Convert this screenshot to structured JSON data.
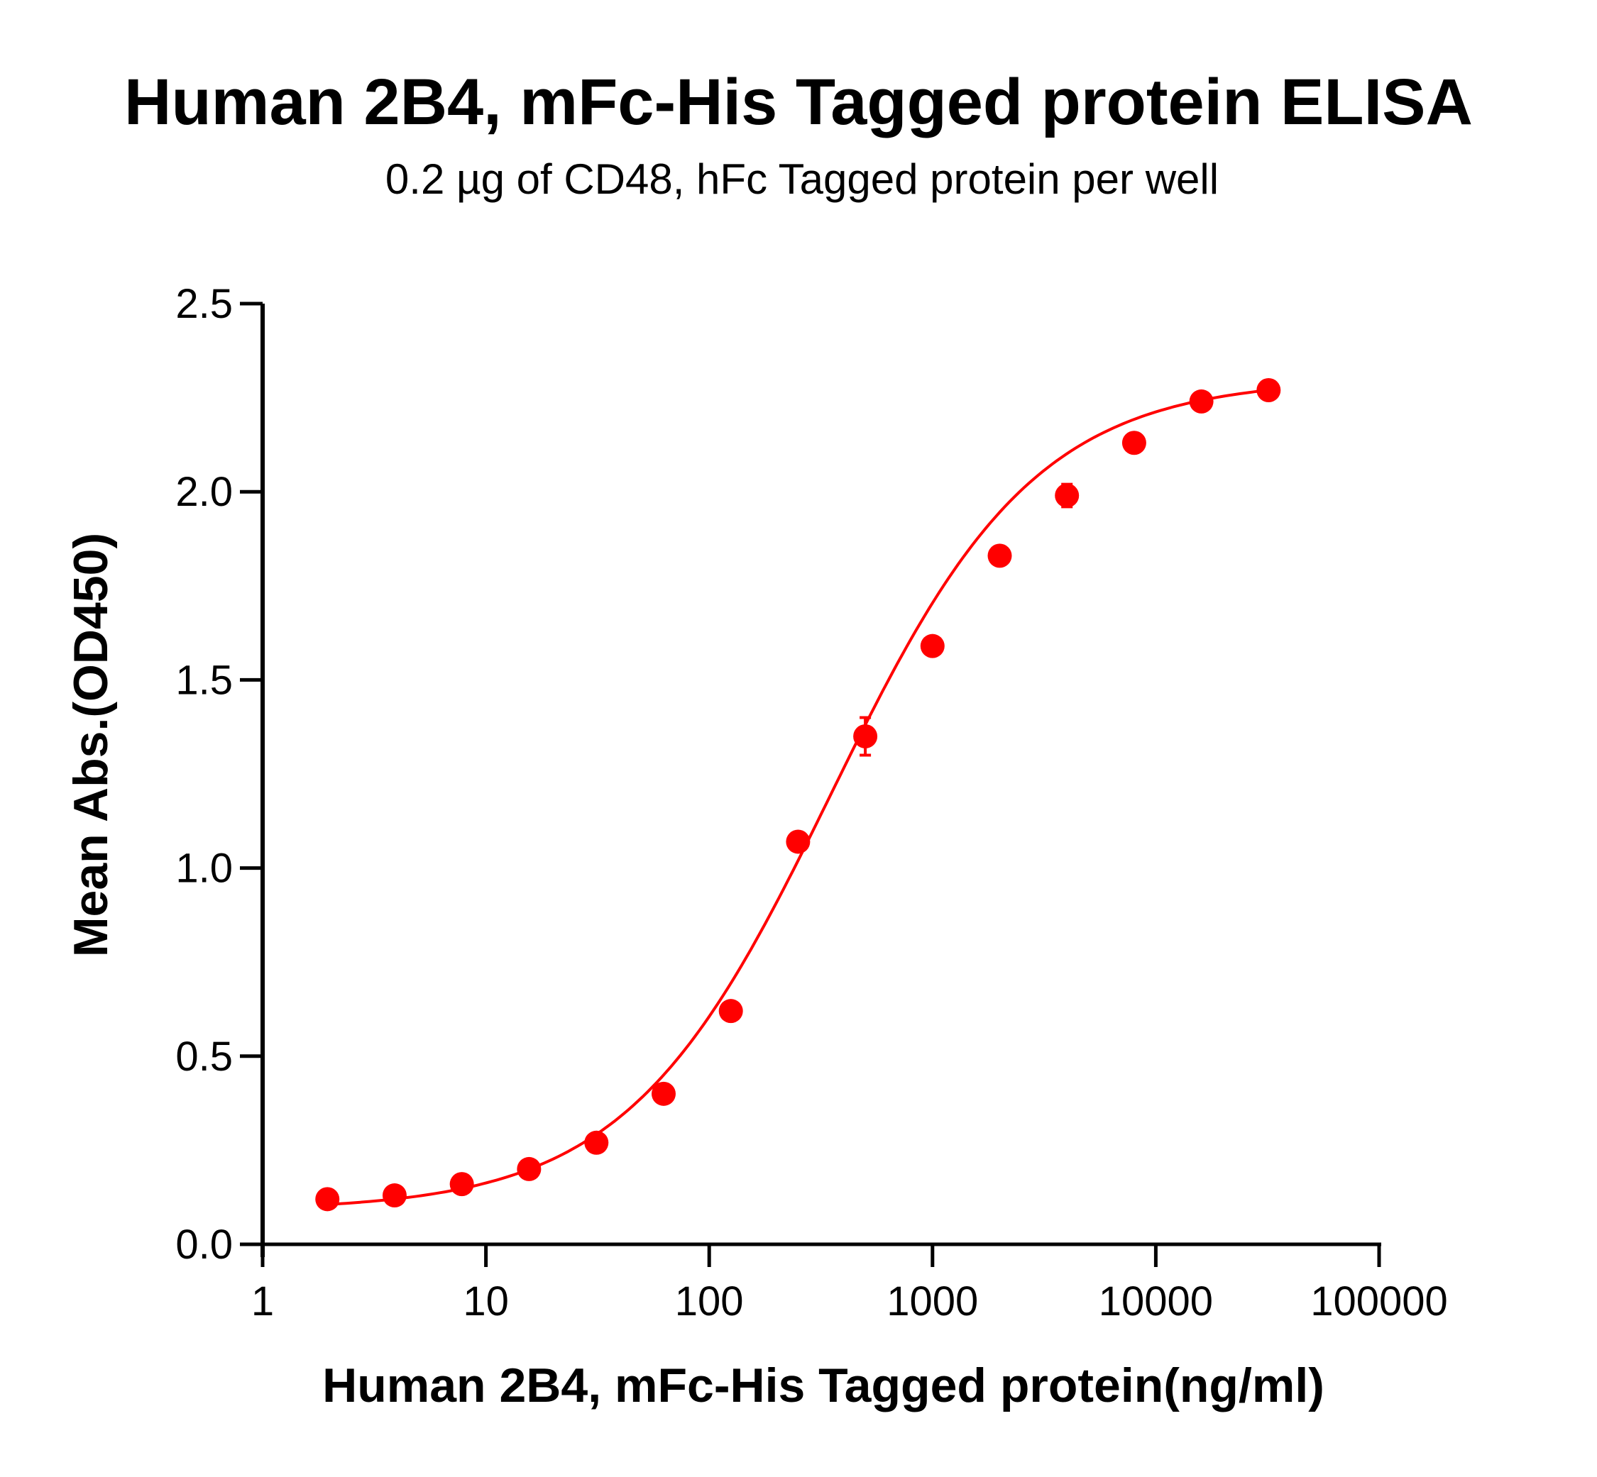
{
  "chart_data": {
    "type": "scatter",
    "title": "Human 2B4, mFc-His Tagged protein ELISA",
    "subtitle": "0.2 µg of CD48, hFc Tagged protein per well",
    "xlabel": "Human 2B4, mFc-His Tagged protein(ng/ml)",
    "ylabel": "Mean Abs.(OD450)",
    "xscale": "log",
    "xlim": [
      1,
      100000
    ],
    "ylim": [
      0,
      2.5
    ],
    "x_ticks": [
      "1",
      "10",
      "100",
      "1000",
      "10000",
      "100000"
    ],
    "y_ticks": [
      "0.0",
      "0.5",
      "1.0",
      "1.5",
      "2.0",
      "2.5"
    ],
    "grid": false,
    "legend": null,
    "series": [
      {
        "name": "Human 2B4, mFc-His Tagged protein",
        "color": "#ff0000",
        "marker": "circle",
        "fit": "4PL sigmoidal curve",
        "x": [
          1.95,
          3.9,
          7.8,
          15.6,
          31.25,
          62.5,
          125,
          250,
          500,
          1000,
          2000,
          4000,
          8000,
          16000,
          32000
        ],
        "y": [
          0.12,
          0.13,
          0.16,
          0.2,
          0.27,
          0.4,
          0.62,
          1.07,
          1.35,
          1.59,
          1.83,
          1.99,
          2.13,
          2.24,
          2.27
        ],
        "error": [
          0.01,
          0.01,
          0.01,
          0.01,
          0.01,
          0.01,
          0.01,
          0.02,
          0.05,
          0.01,
          0.02,
          0.03,
          0.01,
          0.01,
          0.01
        ]
      }
    ],
    "fit_params": {
      "bottom": 0.09,
      "top": 2.3,
      "ec50": 350,
      "hill": 0.95
    }
  }
}
